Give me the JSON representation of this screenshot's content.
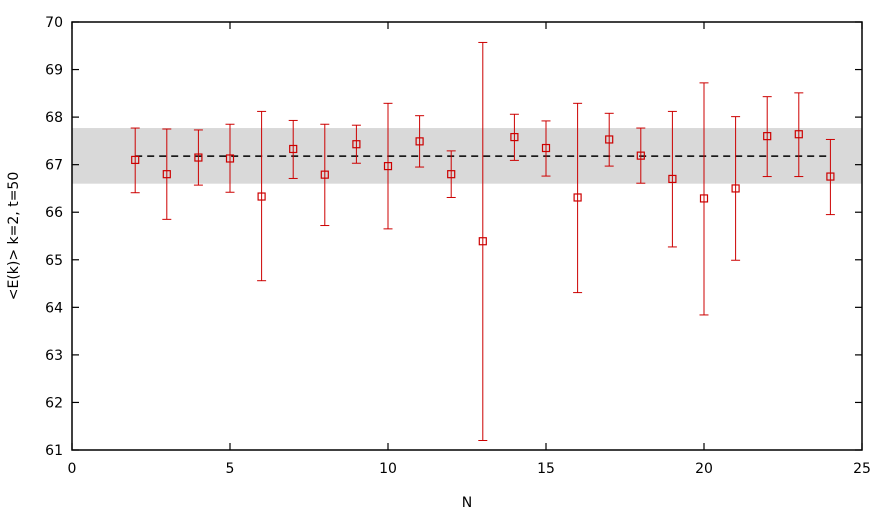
{
  "chart_data": {
    "type": "scatter",
    "xlabel": "N",
    "ylabel": "<E(k)> k=2, t=50",
    "xlim": [
      0,
      25
    ],
    "ylim": [
      61,
      70
    ],
    "xticks": [
      0,
      5,
      10,
      15,
      20,
      25
    ],
    "yticks": [
      61,
      62,
      63,
      64,
      65,
      66,
      67,
      68,
      69,
      70
    ],
    "grid": false,
    "legend": "none",
    "reference": {
      "mean": 67.18,
      "band": [
        66.6,
        67.77
      ],
      "x_range": [
        2,
        24
      ],
      "line_style": "dashed",
      "band_color": "#d9d9d9"
    },
    "series": [
      {
        "color": "#cc0000",
        "marker": "square",
        "points": [
          {
            "x": 2,
            "y": 67.1,
            "err_low": 66.41,
            "err_high": 67.77
          },
          {
            "x": 3,
            "y": 66.8,
            "err_low": 65.85,
            "err_high": 67.75
          },
          {
            "x": 4,
            "y": 67.15,
            "err_low": 66.57,
            "err_high": 67.73
          },
          {
            "x": 5,
            "y": 67.13,
            "err_low": 66.42,
            "err_high": 67.85
          },
          {
            "x": 6,
            "y": 66.33,
            "err_low": 64.56,
            "err_high": 68.12
          },
          {
            "x": 7,
            "y": 67.33,
            "err_low": 66.71,
            "err_high": 67.93
          },
          {
            "x": 8,
            "y": 66.79,
            "err_low": 65.72,
            "err_high": 67.85
          },
          {
            "x": 9,
            "y": 67.43,
            "err_low": 67.03,
            "err_high": 67.83
          },
          {
            "x": 10,
            "y": 66.97,
            "err_low": 65.65,
            "err_high": 68.29
          },
          {
            "x": 11,
            "y": 67.49,
            "err_low": 66.95,
            "err_high": 68.03
          },
          {
            "x": 12,
            "y": 66.8,
            "err_low": 66.31,
            "err_high": 67.29
          },
          {
            "x": 13,
            "y": 65.39,
            "err_low": 61.2,
            "err_high": 69.57
          },
          {
            "x": 14,
            "y": 67.58,
            "err_low": 67.09,
            "err_high": 68.06
          },
          {
            "x": 15,
            "y": 67.35,
            "err_low": 66.76,
            "err_high": 67.92
          },
          {
            "x": 16,
            "y": 66.31,
            "err_low": 64.31,
            "err_high": 68.29
          },
          {
            "x": 17,
            "y": 67.53,
            "err_low": 66.97,
            "err_high": 68.08
          },
          {
            "x": 18,
            "y": 67.19,
            "err_low": 66.61,
            "err_high": 67.77
          },
          {
            "x": 19,
            "y": 66.7,
            "err_low": 65.27,
            "err_high": 68.12
          },
          {
            "x": 20,
            "y": 66.29,
            "err_low": 63.84,
            "err_high": 68.72
          },
          {
            "x": 21,
            "y": 66.5,
            "err_low": 64.99,
            "err_high": 68.01
          },
          {
            "x": 22,
            "y": 67.6,
            "err_low": 66.75,
            "err_high": 68.43
          },
          {
            "x": 23,
            "y": 67.64,
            "err_low": 66.75,
            "err_high": 68.51
          },
          {
            "x": 24,
            "y": 66.75,
            "err_low": 65.95,
            "err_high": 67.53
          }
        ]
      }
    ]
  }
}
